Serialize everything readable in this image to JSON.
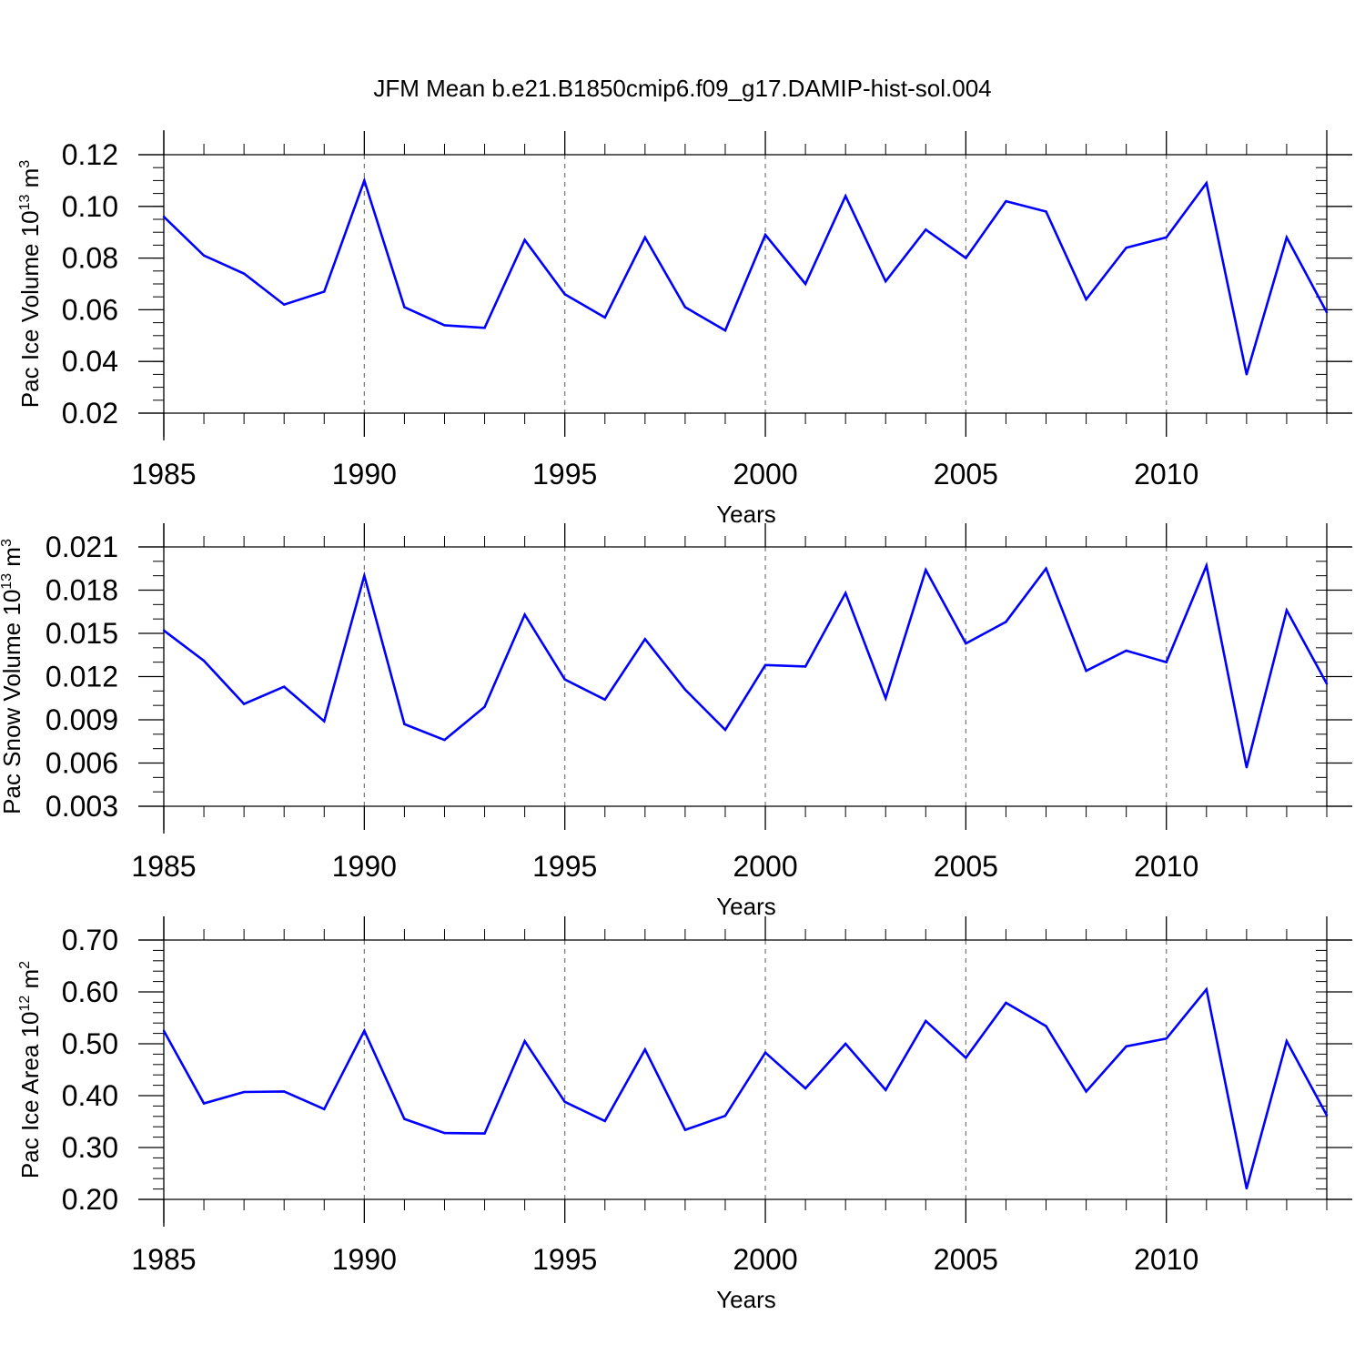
{
  "figure_title": "JFM Mean b.e21.B1850cmip6.f09_g17.DAMIP-hist-sol.004",
  "line_color": "#0000ff",
  "chart_data": [
    {
      "type": "line",
      "ylabel_main": "Pac Ice Volume 10",
      "ylabel_exp": "13",
      "ylabel_unit": " m",
      "ylabel_unit_exp": "3",
      "xlabel": "Years",
      "xlim": [
        1985,
        2014
      ],
      "ylim": [
        0.02,
        0.12
      ],
      "x_ticks": [
        1985,
        1990,
        1995,
        2000,
        2005,
        2010
      ],
      "y_ticks": [
        "0.02",
        "0.04",
        "0.06",
        "0.08",
        "0.10",
        "0.12"
      ],
      "y_tick_values": [
        0.02,
        0.04,
        0.06,
        0.08,
        0.1,
        0.12
      ],
      "y_minor_step": 0.005,
      "grid_years": [
        1990,
        1995,
        2000,
        2005,
        2010
      ],
      "x": [
        1985,
        1986,
        1987,
        1988,
        1989,
        1990,
        1991,
        1992,
        1993,
        1994,
        1995,
        1996,
        1997,
        1998,
        1999,
        2000,
        2001,
        2002,
        2003,
        2004,
        2005,
        2006,
        2007,
        2008,
        2009,
        2010,
        2011,
        2012,
        2013,
        2014
      ],
      "values": [
        0.096,
        0.081,
        0.074,
        0.062,
        0.067,
        0.11,
        0.061,
        0.054,
        0.053,
        0.087,
        0.066,
        0.057,
        0.088,
        0.061,
        0.052,
        0.089,
        0.07,
        0.104,
        0.071,
        0.091,
        0.08,
        0.102,
        0.098,
        0.064,
        0.084,
        0.088,
        0.109,
        0.035,
        0.088,
        0.059
      ]
    },
    {
      "type": "line",
      "ylabel_main": "Pac Snow Volume 10",
      "ylabel_exp": "13",
      "ylabel_unit": " m",
      "ylabel_unit_exp": "3",
      "xlabel": "Years",
      "xlim": [
        1985,
        2014
      ],
      "ylim": [
        0.003,
        0.021
      ],
      "x_ticks": [
        1985,
        1990,
        1995,
        2000,
        2005,
        2010
      ],
      "y_ticks": [
        "0.003",
        "0.006",
        "0.009",
        "0.012",
        "0.015",
        "0.018",
        "0.021"
      ],
      "y_tick_values": [
        0.003,
        0.006,
        0.009,
        0.012,
        0.015,
        0.018,
        0.021
      ],
      "y_minor_step": 0.001,
      "grid_years": [
        1990,
        1995,
        2000,
        2005,
        2010
      ],
      "x": [
        1985,
        1986,
        1987,
        1988,
        1989,
        1990,
        1991,
        1992,
        1993,
        1994,
        1995,
        1996,
        1997,
        1998,
        1999,
        2000,
        2001,
        2002,
        2003,
        2004,
        2005,
        2006,
        2007,
        2008,
        2009,
        2010,
        2011,
        2012,
        2013,
        2014
      ],
      "values": [
        0.0152,
        0.0131,
        0.0101,
        0.0113,
        0.0089,
        0.019,
        0.0087,
        0.0076,
        0.0099,
        0.0163,
        0.0118,
        0.0104,
        0.0146,
        0.0111,
        0.0083,
        0.0128,
        0.0127,
        0.0178,
        0.0105,
        0.0194,
        0.0143,
        0.0158,
        0.0195,
        0.0124,
        0.0138,
        0.013,
        0.0197,
        0.0057,
        0.0166,
        0.0115
      ]
    },
    {
      "type": "line",
      "ylabel_main": "Pac Ice Area 10",
      "ylabel_exp": "12",
      "ylabel_unit": " m",
      "ylabel_unit_exp": "2",
      "xlabel": "Years",
      "xlim": [
        1985,
        2014
      ],
      "ylim": [
        0.2,
        0.7
      ],
      "x_ticks": [
        1985,
        1990,
        1995,
        2000,
        2005,
        2010
      ],
      "y_ticks": [
        "0.20",
        "0.30",
        "0.40",
        "0.50",
        "0.60",
        "0.70"
      ],
      "y_tick_values": [
        0.2,
        0.3,
        0.4,
        0.5,
        0.6,
        0.7
      ],
      "y_minor_step": 0.02,
      "grid_years": [
        1990,
        1995,
        2000,
        2005,
        2010
      ],
      "x": [
        1985,
        1986,
        1987,
        1988,
        1989,
        1990,
        1991,
        1992,
        1993,
        1994,
        1995,
        1996,
        1997,
        1998,
        1999,
        2000,
        2001,
        2002,
        2003,
        2004,
        2005,
        2006,
        2007,
        2008,
        2009,
        2010,
        2011,
        2012,
        2013,
        2014
      ],
      "values": [
        0.525,
        0.385,
        0.407,
        0.408,
        0.374,
        0.525,
        0.355,
        0.328,
        0.327,
        0.505,
        0.388,
        0.351,
        0.489,
        0.334,
        0.361,
        0.483,
        0.414,
        0.5,
        0.411,
        0.544,
        0.473,
        0.579,
        0.534,
        0.408,
        0.495,
        0.51,
        0.605,
        0.221,
        0.505,
        0.362
      ]
    }
  ]
}
